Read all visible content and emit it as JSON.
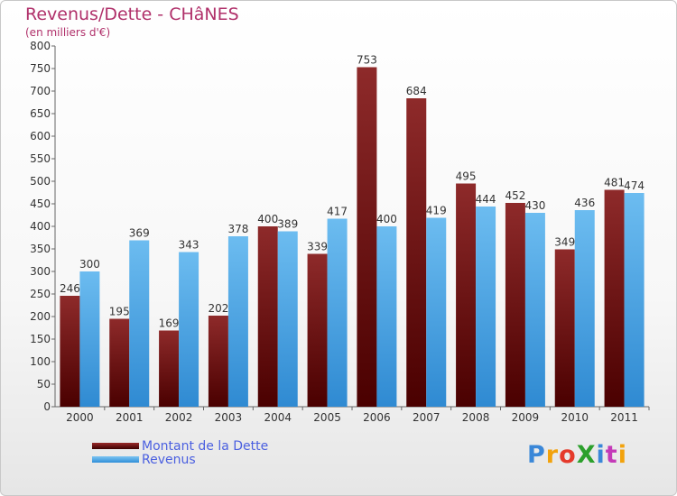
{
  "header": {
    "title": "Revenus/Dette - CHâNES",
    "subtitle": "(en milliers d'€)"
  },
  "legend": {
    "dette": "Montant de la Dette",
    "revenus": "Revenus"
  },
  "logo": {
    "text": "ProXiti",
    "colors": [
      "#3a87d8",
      "#f2a20c",
      "#e53a2b",
      "#2ca02c",
      "#3a87d8",
      "#c43ab8",
      "#f2a20c"
    ]
  },
  "chart_data": {
    "type": "bar",
    "title": "Revenus/Dette - CHâNES",
    "subtitle": "(en milliers d'€)",
    "xlabel": "",
    "ylabel": "",
    "ylim": [
      0,
      800
    ],
    "yticks": [
      0,
      50,
      100,
      150,
      200,
      250,
      300,
      350,
      400,
      450,
      500,
      550,
      600,
      650,
      700,
      750,
      800
    ],
    "grid": false,
    "legend_position": "bottom-left",
    "categories": [
      "2000",
      "2001",
      "2002",
      "2003",
      "2004",
      "2005",
      "2006",
      "2007",
      "2008",
      "2009",
      "2010",
      "2011"
    ],
    "series": [
      {
        "name": "Montant de la Dette",
        "color_top": "#8e2a2a",
        "color_bottom": "#4a0000",
        "values": [
          246,
          195,
          169,
          202,
          400,
          339,
          753,
          684,
          495,
          452,
          349,
          481
        ]
      },
      {
        "name": "Revenus",
        "color_top": "#6cbcf0",
        "color_bottom": "#2f8ad2",
        "values": [
          300,
          369,
          343,
          378,
          389,
          417,
          400,
          419,
          444,
          430,
          436,
          474
        ]
      }
    ]
  }
}
